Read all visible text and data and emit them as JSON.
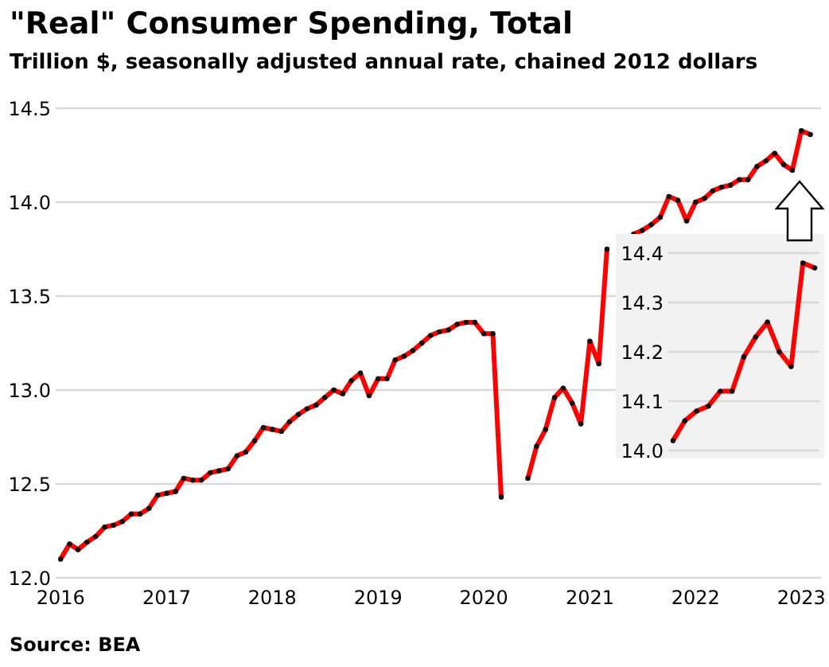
{
  "chart_data": [
    {
      "type": "line",
      "title": "\"Real\" Consumer Spending, Total",
      "subtitle": "Trillion $, seasonally adjusted annual rate, chained 2012 dollars",
      "x": [
        "2016-01",
        "2016-02",
        "2016-03",
        "2016-04",
        "2016-05",
        "2016-06",
        "2016-07",
        "2016-08",
        "2016-09",
        "2016-10",
        "2016-11",
        "2016-12",
        "2017-01",
        "2017-02",
        "2017-03",
        "2017-04",
        "2017-05",
        "2017-06",
        "2017-07",
        "2017-08",
        "2017-09",
        "2017-10",
        "2017-11",
        "2017-12",
        "2018-01",
        "2018-02",
        "2018-03",
        "2018-04",
        "2018-05",
        "2018-06",
        "2018-07",
        "2018-08",
        "2018-09",
        "2018-10",
        "2018-11",
        "2018-12",
        "2019-01",
        "2019-02",
        "2019-03",
        "2019-04",
        "2019-05",
        "2019-06",
        "2019-07",
        "2019-08",
        "2019-09",
        "2019-10",
        "2019-11",
        "2019-12",
        "2020-01",
        "2020-02",
        "2020-03",
        "2020-04",
        "2020-05",
        "2020-06",
        "2020-07",
        "2020-08",
        "2020-09",
        "2020-10",
        "2020-11",
        "2020-12",
        "2021-01",
        "2021-02",
        "2021-03",
        "2021-04",
        "2021-05",
        "2021-06",
        "2021-07",
        "2021-08",
        "2021-09",
        "2021-10",
        "2021-11",
        "2021-12",
        "2022-01",
        "2022-02",
        "2022-03",
        "2022-04",
        "2022-05",
        "2022-06",
        "2022-07",
        "2022-08",
        "2022-09",
        "2022-10",
        "2022-11",
        "2022-12",
        "2023-01",
        "2023-02"
      ],
      "series": [
        {
          "color": "#ff0000",
          "values": [
            12.1,
            12.18,
            12.15,
            12.19,
            12.22,
            12.27,
            12.28,
            12.3,
            12.34,
            12.34,
            12.37,
            12.44,
            12.45,
            12.46,
            12.53,
            12.52,
            12.52,
            12.56,
            12.57,
            12.58,
            12.65,
            12.67,
            12.73,
            12.8,
            12.79,
            12.78,
            12.83,
            12.87,
            12.9,
            12.92,
            12.96,
            13.0,
            12.98,
            13.05,
            13.09,
            12.97,
            13.06,
            13.06,
            13.16,
            13.18,
            13.21,
            13.25,
            13.29,
            13.31,
            13.32,
            13.35,
            13.36,
            13.36,
            13.3,
            13.3,
            12.43,
            null,
            null,
            12.53,
            12.7,
            12.79,
            12.96,
            13.01,
            12.93,
            12.82,
            13.26,
            13.14,
            13.75,
            null,
            null,
            13.83,
            13.85,
            13.88,
            13.92,
            14.03,
            14.01,
            13.9,
            14.0,
            14.02,
            14.06,
            14.08,
            14.09,
            14.12,
            14.12,
            14.19,
            14.22,
            14.26,
            14.2,
            14.17,
            14.38,
            14.36
          ]
        }
      ],
      "xlim": [
        "2015-12-15",
        "2023-03-10"
      ],
      "xticks": [
        "2016",
        "2017",
        "2018",
        "2019",
        "2020",
        "2021",
        "2022",
        "2023"
      ],
      "ylim": [
        12,
        14.5
      ],
      "yticks": [
        {
          "value": 12,
          "label": "12.0"
        },
        12.5,
        {
          "value": 13,
          "label": "13.0"
        },
        13.5,
        {
          "value": 14,
          "label": "14.0"
        },
        14.5
      ],
      "grid": "y",
      "marker": "circle",
      "line_style": "solid",
      "annotations": [
        "Source: BEA"
      ]
    },
    {
      "type": "line",
      "categories": [
        null,
        null,
        null,
        null,
        null,
        null,
        null,
        null,
        null,
        null,
        null,
        null,
        null
      ],
      "series": [
        {
          "color": "#ff0000",
          "values": [
            14.02,
            14.06,
            14.08,
            14.09,
            14.12,
            14.12,
            14.19,
            14.23,
            14.26,
            14.2,
            14.17,
            14.38,
            14.37
          ]
        }
      ],
      "ylim": [
        14,
        14.4
      ],
      "yticks": [
        {
          "value": 14,
          "label": "14.0"
        },
        14.1,
        14.2,
        14.3,
        14.4
      ],
      "grid": "y",
      "marker": "circle",
      "line_style": "solid",
      "tick_labels": "y"
    }
  ]
}
